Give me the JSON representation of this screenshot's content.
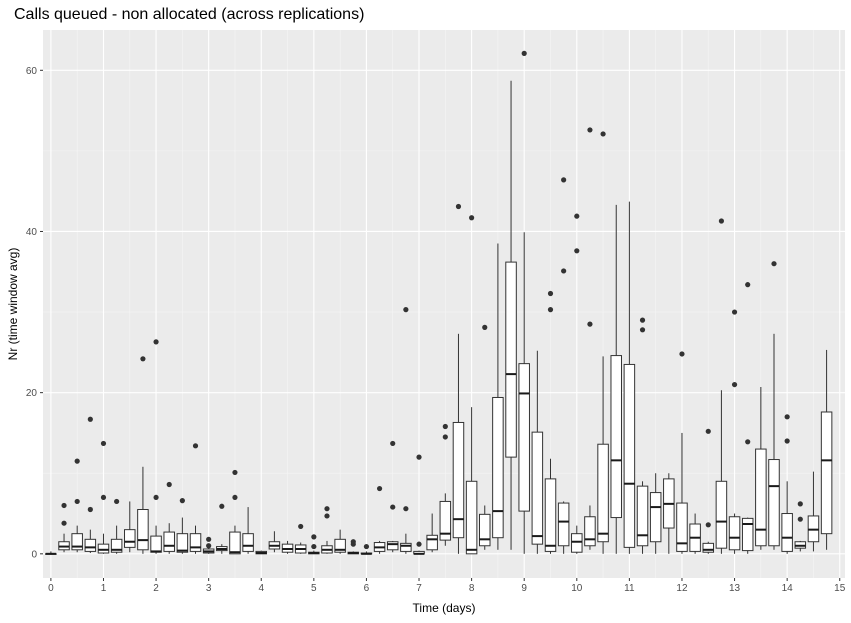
{
  "chart_data": {
    "type": "boxplot",
    "title": "Calls queued - non allocated (across replications)",
    "xlabel": "Time (days)",
    "ylabel": "Nr (time window avg)",
    "xlim": [
      -0.15,
      15.1
    ],
    "ylim": [
      -3,
      65
    ],
    "x_ticks": [
      0,
      1,
      2,
      3,
      4,
      5,
      6,
      7,
      8,
      9,
      10,
      11,
      12,
      13,
      14,
      15
    ],
    "y_ticks": [
      0,
      20,
      40,
      60
    ],
    "grid": true,
    "box_width_days": 0.2,
    "boxes": [
      {
        "x": 0.0,
        "lo": 0,
        "q1": 0,
        "med": 0,
        "q3": 0,
        "hi": 0.3,
        "out": []
      },
      {
        "x": 0.25,
        "lo": 0.2,
        "q1": 0.5,
        "med": 0.9,
        "q3": 1.5,
        "hi": 2.5,
        "out": [
          3.8,
          6.0
        ]
      },
      {
        "x": 0.5,
        "lo": 0.2,
        "q1": 0.5,
        "med": 0.9,
        "q3": 2.5,
        "hi": 3.5,
        "out": [
          6.5,
          11.5
        ]
      },
      {
        "x": 0.75,
        "lo": 0.1,
        "q1": 0.3,
        "med": 0.8,
        "q3": 1.8,
        "hi": 3.0,
        "out": [
          5.5,
          16.7
        ]
      },
      {
        "x": 1.0,
        "lo": 0,
        "q1": 0.1,
        "med": 0.5,
        "q3": 1.2,
        "hi": 2.5,
        "out": [
          7.0,
          13.7
        ]
      },
      {
        "x": 1.25,
        "lo": 0,
        "q1": 0.2,
        "med": 0.5,
        "q3": 1.8,
        "hi": 3.5,
        "out": [
          6.5
        ]
      },
      {
        "x": 1.5,
        "lo": 0.2,
        "q1": 0.8,
        "med": 1.5,
        "q3": 3.0,
        "hi": 6.5,
        "out": []
      },
      {
        "x": 1.75,
        "lo": 0,
        "q1": 0.5,
        "med": 1.7,
        "q3": 5.5,
        "hi": 10.8,
        "out": [
          24.2
        ]
      },
      {
        "x": 2.0,
        "lo": 0,
        "q1": 0.2,
        "med": 0.3,
        "q3": 2.2,
        "hi": 3.5,
        "out": [
          7.0,
          26.3
        ]
      },
      {
        "x": 2.25,
        "lo": 0,
        "q1": 0.3,
        "med": 1.0,
        "q3": 2.7,
        "hi": 3.8,
        "out": [
          8.6
        ]
      },
      {
        "x": 2.5,
        "lo": 0,
        "q1": 0.2,
        "med": 0.4,
        "q3": 2.5,
        "hi": 4.5,
        "out": [
          6.6
        ]
      },
      {
        "x": 2.75,
        "lo": 0,
        "q1": 0.3,
        "med": 0.8,
        "q3": 2.5,
        "hi": 3.5,
        "out": [
          13.4
        ]
      },
      {
        "x": 3.0,
        "lo": 0,
        "q1": 0.1,
        "med": 0.3,
        "q3": 0.6,
        "hi": 1.0,
        "out": [
          1.0,
          1.8
        ]
      },
      {
        "x": 3.25,
        "lo": 0,
        "q1": 0.4,
        "med": 0.6,
        "q3": 0.9,
        "hi": 1.2,
        "out": [
          5.9
        ]
      },
      {
        "x": 3.5,
        "lo": 0,
        "q1": 0,
        "med": 0.2,
        "q3": 2.7,
        "hi": 3.5,
        "out": [
          7.0,
          10.1
        ]
      },
      {
        "x": 3.75,
        "lo": 0,
        "q1": 0.3,
        "med": 1.0,
        "q3": 2.5,
        "hi": 5.8,
        "out": []
      },
      {
        "x": 4.0,
        "lo": 0,
        "q1": 0,
        "med": 0.1,
        "q3": 0.3,
        "hi": 0.4,
        "out": []
      },
      {
        "x": 4.25,
        "lo": 0.2,
        "q1": 0.6,
        "med": 1.0,
        "q3": 1.5,
        "hi": 2.8,
        "out": []
      },
      {
        "x": 4.5,
        "lo": 0,
        "q1": 0.2,
        "med": 0.6,
        "q3": 1.2,
        "hi": 1.6,
        "out": []
      },
      {
        "x": 4.75,
        "lo": 0,
        "q1": 0.1,
        "med": 0.6,
        "q3": 1.1,
        "hi": 1.4,
        "out": [
          3.4
        ]
      },
      {
        "x": 5.0,
        "lo": 0,
        "q1": 0,
        "med": 0.1,
        "q3": 0.2,
        "hi": 0.4,
        "out": [
          0.9,
          2.1
        ]
      },
      {
        "x": 5.25,
        "lo": 0,
        "q1": 0.1,
        "med": 0.5,
        "q3": 1.0,
        "hi": 1.6,
        "out": [
          4.7,
          5.6
        ]
      },
      {
        "x": 5.5,
        "lo": 0,
        "q1": 0.2,
        "med": 0.5,
        "q3": 1.8,
        "hi": 3.0,
        "out": []
      },
      {
        "x": 5.75,
        "lo": 0,
        "q1": 0,
        "med": 0.1,
        "q3": 0.2,
        "hi": 0.3,
        "out": [
          1.2,
          1.5
        ]
      },
      {
        "x": 6.0,
        "lo": 0,
        "q1": 0,
        "med": 0,
        "q3": 0.1,
        "hi": 0.3,
        "out": [
          0.9
        ]
      },
      {
        "x": 6.25,
        "lo": 0,
        "q1": 0.3,
        "med": 0.8,
        "q3": 1.4,
        "hi": 1.6,
        "out": [
          8.1
        ]
      },
      {
        "x": 6.5,
        "lo": 0.2,
        "q1": 0.5,
        "med": 1.2,
        "q3": 1.5,
        "hi": 1.6,
        "out": [
          5.8,
          13.7
        ]
      },
      {
        "x": 6.75,
        "lo": 0,
        "q1": 0.3,
        "med": 1.0,
        "q3": 1.3,
        "hi": 2.5,
        "out": [
          5.6,
          30.3
        ]
      },
      {
        "x": 7.0,
        "lo": 0,
        "q1": 0,
        "med": 0,
        "q3": 0.3,
        "hi": 0.4,
        "out": [
          1.2,
          12.0
        ]
      },
      {
        "x": 7.25,
        "lo": 0.2,
        "q1": 0.5,
        "med": 1.8,
        "q3": 2.3,
        "hi": 5.0,
        "out": []
      },
      {
        "x": 7.5,
        "lo": 1.0,
        "q1": 1.7,
        "med": 2.5,
        "q3": 6.5,
        "hi": 7.5,
        "out": [
          14.5,
          15.8
        ]
      },
      {
        "x": 7.75,
        "lo": 0,
        "q1": 2.0,
        "med": 4.3,
        "q3": 16.3,
        "hi": 27.3,
        "out": [
          43.1
        ]
      },
      {
        "x": 8.0,
        "lo": 0,
        "q1": 0,
        "med": 0.5,
        "q3": 9.0,
        "hi": 18.2,
        "out": [
          41.7
        ]
      },
      {
        "x": 8.25,
        "lo": 0.5,
        "q1": 1.0,
        "med": 1.8,
        "q3": 4.9,
        "hi": 6.0,
        "out": [
          28.1
        ]
      },
      {
        "x": 8.5,
        "lo": 0.5,
        "q1": 2.0,
        "med": 5.3,
        "q3": 19.4,
        "hi": 38.5,
        "out": []
      },
      {
        "x": 8.75,
        "lo": 0.5,
        "q1": 12.0,
        "med": 22.3,
        "q3": 36.2,
        "hi": 58.7,
        "out": []
      },
      {
        "x": 9.0,
        "lo": 0,
        "q1": 5.3,
        "med": 19.9,
        "q3": 23.6,
        "hi": 39.9,
        "out": [
          62.1
        ]
      },
      {
        "x": 9.25,
        "lo": 0,
        "q1": 1.2,
        "med": 2.2,
        "q3": 15.1,
        "hi": 25.2,
        "out": []
      },
      {
        "x": 9.5,
        "lo": 0,
        "q1": 0.3,
        "med": 1.0,
        "q3": 9.3,
        "hi": 11.8,
        "out": [
          30.3,
          32.3
        ]
      },
      {
        "x": 9.75,
        "lo": 0,
        "q1": 1.0,
        "med": 4.0,
        "q3": 6.3,
        "hi": 6.5,
        "out": [
          35.1,
          46.4
        ]
      },
      {
        "x": 10.0,
        "lo": 0,
        "q1": 0.2,
        "med": 1.5,
        "q3": 2.5,
        "hi": 3.5,
        "out": [
          37.6,
          41.9
        ]
      },
      {
        "x": 10.25,
        "lo": 0.5,
        "q1": 1.0,
        "med": 1.8,
        "q3": 4.6,
        "hi": 6.0,
        "out": [
          28.5,
          52.6
        ]
      },
      {
        "x": 10.5,
        "lo": 0,
        "q1": 1.5,
        "med": 2.5,
        "q3": 13.6,
        "hi": 24.5,
        "out": [
          52.1
        ]
      },
      {
        "x": 10.75,
        "lo": 0,
        "q1": 4.5,
        "med": 11.6,
        "q3": 24.6,
        "hi": 43.3,
        "out": []
      },
      {
        "x": 11.0,
        "lo": 0,
        "q1": 0.8,
        "med": 8.7,
        "q3": 23.5,
        "hi": 43.7,
        "out": []
      },
      {
        "x": 11.25,
        "lo": 0,
        "q1": 1.0,
        "med": 2.3,
        "q3": 8.4,
        "hi": 9.0,
        "out": [
          27.8,
          29.0
        ]
      },
      {
        "x": 11.5,
        "lo": 0,
        "q1": 1.5,
        "med": 5.8,
        "q3": 7.6,
        "hi": 10.0,
        "out": []
      },
      {
        "x": 11.75,
        "lo": 0,
        "q1": 3.2,
        "med": 6.2,
        "q3": 9.3,
        "hi": 10.0,
        "out": []
      },
      {
        "x": 12.0,
        "lo": 0,
        "q1": 0.3,
        "med": 1.3,
        "q3": 6.3,
        "hi": 15.0,
        "out": [
          24.8
        ]
      },
      {
        "x": 12.25,
        "lo": 0,
        "q1": 0.3,
        "med": 2.0,
        "q3": 3.7,
        "hi": 5.0,
        "out": []
      },
      {
        "x": 12.5,
        "lo": 0,
        "q1": 0.2,
        "med": 0.5,
        "q3": 1.3,
        "hi": 1.5,
        "out": [
          3.6,
          15.2
        ]
      },
      {
        "x": 12.75,
        "lo": 0,
        "q1": 0.7,
        "med": 4.0,
        "q3": 9.0,
        "hi": 20.3,
        "out": [
          41.3
        ]
      },
      {
        "x": 13.0,
        "lo": 0,
        "q1": 0.5,
        "med": 2.0,
        "q3": 4.6,
        "hi": 5.0,
        "out": [
          21.0,
          30.0
        ]
      },
      {
        "x": 13.25,
        "lo": 0,
        "q1": 0.4,
        "med": 3.7,
        "q3": 4.4,
        "hi": 4.5,
        "out": [
          13.9,
          33.4
        ]
      },
      {
        "x": 13.5,
        "lo": 0.5,
        "q1": 1.0,
        "med": 3.0,
        "q3": 13.0,
        "hi": 20.7,
        "out": []
      },
      {
        "x": 13.75,
        "lo": 0.5,
        "q1": 1.0,
        "med": 8.4,
        "q3": 11.7,
        "hi": 27.3,
        "out": [
          36.0
        ]
      },
      {
        "x": 14.0,
        "lo": 0,
        "q1": 0.3,
        "med": 2.0,
        "q3": 5.0,
        "hi": 9.0,
        "out": [
          14.0,
          17.0
        ]
      },
      {
        "x": 14.25,
        "lo": 0.3,
        "q1": 0.7,
        "med": 1.0,
        "q3": 1.5,
        "hi": 1.6,
        "out": [
          4.3,
          6.2
        ]
      },
      {
        "x": 14.5,
        "lo": 0.3,
        "q1": 1.5,
        "med": 3.0,
        "q3": 4.7,
        "hi": 10.2,
        "out": []
      },
      {
        "x": 14.75,
        "lo": 0.5,
        "q1": 2.5,
        "med": 11.6,
        "q3": 17.6,
        "hi": 25.3,
        "out": []
      }
    ]
  }
}
